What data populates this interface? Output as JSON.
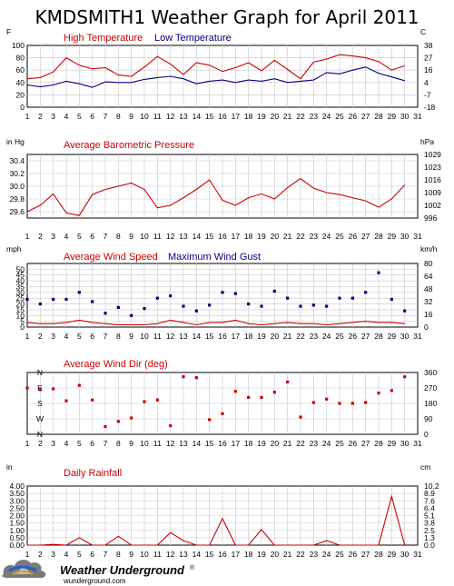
{
  "page": {
    "title": "KMDSMITH1 Weather Graph for April 2011",
    "logo_text": "Weather Underground",
    "logo_mark": "®",
    "logo_url": "wunderground.com"
  },
  "colors": {
    "red": "#cc0000",
    "blue": "#000080",
    "grid": "#c8c8c8",
    "frame": "#000000"
  },
  "chart_data": [
    {
      "type": "line",
      "title": "",
      "left_unit": "F",
      "right_unit": "C",
      "x": [
        1,
        2,
        3,
        4,
        5,
        6,
        7,
        8,
        9,
        10,
        11,
        12,
        13,
        14,
        15,
        16,
        17,
        18,
        19,
        20,
        21,
        22,
        23,
        24,
        25,
        26,
        27,
        28,
        29,
        30
      ],
      "xlim": [
        1,
        31
      ],
      "ylim": [
        0,
        100
      ],
      "left_ticks": [
        "0",
        "20",
        "40",
        "60",
        "80",
        "100"
      ],
      "right_ticks": [
        "-18",
        "-7",
        "4",
        "16",
        "27",
        "38"
      ],
      "series": [
        {
          "name": "High Temperature",
          "color": "#cc0000",
          "values": [
            46,
            48,
            57,
            80,
            68,
            62,
            64,
            52,
            50,
            65,
            82,
            70,
            53,
            72,
            68,
            58,
            64,
            72,
            59,
            76,
            61,
            46,
            73,
            78,
            85,
            83,
            80,
            74,
            60,
            67
          ]
        },
        {
          "name": "Low Temperature",
          "color": "#000080",
          "values": [
            36,
            33,
            36,
            42,
            38,
            32,
            41,
            40,
            40,
            45,
            48,
            50,
            46,
            38,
            42,
            44,
            40,
            44,
            42,
            46,
            40,
            42,
            44,
            56,
            54,
            60,
            65,
            55,
            49,
            43
          ]
        }
      ]
    },
    {
      "type": "line",
      "title": "Average Barometric Pressure",
      "left_unit": "in Hg",
      "right_unit": "hPa",
      "x": [
        1,
        2,
        3,
        4,
        5,
        6,
        7,
        8,
        9,
        10,
        11,
        12,
        13,
        14,
        15,
        16,
        17,
        18,
        19,
        20,
        21,
        22,
        23,
        24,
        25,
        26,
        27,
        28,
        29,
        30
      ],
      "xlim": [
        1,
        31
      ],
      "ylim": [
        29.5,
        30.5
      ],
      "left_ticks": [
        "29.6",
        "29.8",
        "30.0",
        "30.2",
        "30.4"
      ],
      "right_ticks": [
        "996",
        "1002",
        "1009",
        "1016",
        "1023",
        "1029"
      ],
      "series": [
        {
          "name": "Average Barometric Pressure",
          "color": "#cc0000",
          "values": [
            29.6,
            29.7,
            29.88,
            29.58,
            29.54,
            29.87,
            29.95,
            30.0,
            30.05,
            29.95,
            29.66,
            29.7,
            29.82,
            29.95,
            30.1,
            29.78,
            29.7,
            29.82,
            29.88,
            29.8,
            29.98,
            30.12,
            29.97,
            29.9,
            29.87,
            29.82,
            29.77,
            29.67,
            29.8,
            30.02
          ]
        }
      ]
    },
    {
      "type": "line",
      "title": "",
      "left_unit": "mph",
      "right_unit": "km/h",
      "x": [
        1,
        2,
        3,
        4,
        5,
        6,
        7,
        8,
        9,
        10,
        11,
        12,
        13,
        14,
        15,
        16,
        17,
        18,
        19,
        20,
        21,
        22,
        23,
        24,
        25,
        26,
        27,
        28,
        29,
        30
      ],
      "xlim": [
        1,
        31
      ],
      "ylim": [
        0,
        55
      ],
      "left_ticks": [
        "0",
        "5",
        "10",
        "15",
        "20",
        "25",
        "30",
        "35",
        "40",
        "45",
        "50"
      ],
      "right_ticks": [
        "0",
        "16",
        "32",
        "48",
        "64",
        "80"
      ],
      "series": [
        {
          "name": "Average Wind Speed",
          "color": "#cc0000",
          "values": [
            4,
            3,
            3,
            4,
            6,
            4,
            3,
            2,
            2,
            2,
            3,
            6,
            4,
            2,
            4,
            4,
            6,
            3,
            2,
            3,
            4,
            3,
            3,
            2,
            3,
            4,
            5,
            4,
            4,
            3
          ]
        },
        {
          "name": "Maximum Wind Gust",
          "color": "#000080",
          "values": [
            24,
            20,
            24,
            24,
            30,
            22,
            12,
            17,
            10,
            16,
            25,
            27,
            18,
            14,
            19,
            30,
            29,
            20,
            18,
            31,
            25,
            18,
            19,
            18,
            25,
            25,
            30,
            47,
            24,
            14
          ]
        }
      ]
    },
    {
      "type": "scatter",
      "title": "Average Wind Dir (deg)",
      "left_unit": "",
      "right_unit": "",
      "x": [
        1,
        2,
        3,
        4,
        5,
        6,
        7,
        8,
        9,
        10,
        11,
        12,
        13,
        14,
        15,
        16,
        17,
        18,
        19,
        20,
        21,
        22,
        23,
        24,
        25,
        26,
        27,
        28,
        29,
        30
      ],
      "xlim": [
        1,
        31
      ],
      "ylim": [
        0,
        360
      ],
      "left_ticks": [
        "N",
        "W",
        "S",
        "E",
        "N"
      ],
      "right_ticks": [
        "0",
        "90",
        "180",
        "270",
        "360"
      ],
      "series": [
        {
          "name": "Average Wind Dir",
          "color": "#cc0000",
          "values": [
            270,
            260,
            265,
            195,
            285,
            200,
            45,
            75,
            95,
            190,
            200,
            50,
            335,
            330,
            85,
            120,
            250,
            215,
            215,
            245,
            305,
            100,
            185,
            205,
            180,
            180,
            185,
            240,
            255,
            335
          ]
        }
      ]
    },
    {
      "type": "line",
      "title": "Daily Rainfall",
      "left_unit": "in",
      "right_unit": "cm",
      "x": [
        1,
        2,
        3,
        4,
        5,
        6,
        7,
        8,
        9,
        10,
        11,
        12,
        13,
        14,
        15,
        16,
        17,
        18,
        19,
        20,
        21,
        22,
        23,
        24,
        25,
        26,
        27,
        28,
        29,
        30
      ],
      "xlim": [
        1,
        31
      ],
      "ylim": [
        0,
        4.0
      ],
      "left_ticks": [
        "0.00",
        "0.50",
        "1.00",
        "1.50",
        "2.00",
        "2.50",
        "3.00",
        "3.50",
        "4.00"
      ],
      "right_ticks": [
        "0.0",
        "1.3",
        "2.5",
        "3.8",
        "5.1",
        "6.4",
        "7.6",
        "8.9",
        "10.2"
      ],
      "series": [
        {
          "name": "Daily Rainfall",
          "color": "#cc0000",
          "values": [
            0,
            0,
            0.05,
            0,
            0.5,
            0,
            0,
            0.6,
            0,
            0,
            0,
            0.85,
            0.3,
            0,
            0,
            1.8,
            0,
            0,
            1.05,
            0,
            0,
            0,
            0,
            0.3,
            0,
            0,
            0,
            0,
            3.3,
            0
          ]
        }
      ]
    }
  ]
}
